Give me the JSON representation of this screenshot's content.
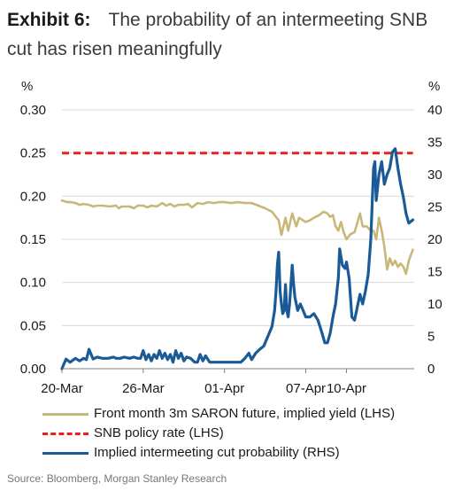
{
  "title": {
    "label": "Exhibit 6:",
    "text": "The probability of an intermeeting SNB cut has risen meaningfully"
  },
  "source": "Source: Bloomberg, Morgan Stanley Research",
  "colors": {
    "saron": "#c9b779",
    "policy": "#e8201f",
    "prob": "#1a5a96",
    "grid": "#d9d9d9"
  },
  "chart_data": {
    "type": "line",
    "left_axis": {
      "unit": "%",
      "min": 0,
      "max": 0.3,
      "ticks": [
        "0.00",
        "0.05",
        "0.10",
        "0.15",
        "0.20",
        "0.25",
        "0.30"
      ]
    },
    "right_axis": {
      "unit": "%",
      "min": 0,
      "max": 40,
      "ticks": [
        "0",
        "5",
        "10",
        "15",
        "20",
        "25",
        "30",
        "35",
        "40"
      ]
    },
    "x_axis": {
      "ticks": [
        "20-Mar",
        "26-Mar",
        "01-Apr",
        "07-Apr",
        "10-Apr"
      ],
      "tick_positions": [
        0,
        6,
        12,
        18,
        21
      ]
    },
    "grid": "horizontal",
    "legend_position": "bottom",
    "series": [
      {
        "name": "Front month 3m SARON future, implied yield (LHS)",
        "axis": "left",
        "color": "#c9b779",
        "points": [
          [
            0,
            0.195
          ],
          [
            0.4,
            0.193
          ],
          [
            0.7,
            0.193
          ],
          [
            1,
            0.192
          ],
          [
            1.3,
            0.19
          ],
          [
            1.6,
            0.191
          ],
          [
            2,
            0.19
          ],
          [
            2.3,
            0.188
          ],
          [
            2.6,
            0.189
          ],
          [
            3,
            0.189
          ],
          [
            3.5,
            0.188
          ],
          [
            4,
            0.189
          ],
          [
            4.2,
            0.186
          ],
          [
            4.4,
            0.188
          ],
          [
            5,
            0.188
          ],
          [
            5.3,
            0.186
          ],
          [
            5.6,
            0.189
          ],
          [
            6,
            0.189
          ],
          [
            6.3,
            0.187
          ],
          [
            6.6,
            0.189
          ],
          [
            7,
            0.188
          ],
          [
            7.4,
            0.192
          ],
          [
            7.7,
            0.189
          ],
          [
            8,
            0.191
          ],
          [
            8.3,
            0.188
          ],
          [
            8.6,
            0.19
          ],
          [
            9,
            0.19
          ],
          [
            9.3,
            0.191
          ],
          [
            9.6,
            0.187
          ],
          [
            10,
            0.192
          ],
          [
            10.4,
            0.191
          ],
          [
            10.8,
            0.193
          ],
          [
            11.2,
            0.192
          ],
          [
            11.6,
            0.193
          ],
          [
            12,
            0.193
          ],
          [
            12.5,
            0.192
          ],
          [
            13,
            0.193
          ],
          [
            13.5,
            0.192
          ],
          [
            14,
            0.192
          ],
          [
            14.5,
            0.189
          ],
          [
            15,
            0.186
          ],
          [
            15.5,
            0.182
          ],
          [
            16,
            0.172
          ],
          [
            16.2,
            0.155
          ],
          [
            16.5,
            0.175
          ],
          [
            16.7,
            0.16
          ],
          [
            17,
            0.18
          ],
          [
            17.3,
            0.165
          ],
          [
            17.5,
            0.175
          ],
          [
            17.8,
            0.172
          ],
          [
            18,
            0.17
          ],
          [
            18.3,
            0.172
          ],
          [
            18.6,
            0.175
          ],
          [
            19,
            0.178
          ],
          [
            19.3,
            0.182
          ],
          [
            19.6,
            0.18
          ],
          [
            19.8,
            0.176
          ],
          [
            20,
            0.178
          ],
          [
            20.2,
            0.165
          ],
          [
            20.4,
            0.16
          ],
          [
            20.6,
            0.17
          ],
          [
            20.8,
            0.158
          ],
          [
            21,
            0.15
          ],
          [
            21.3,
            0.156
          ],
          [
            21.6,
            0.158
          ],
          [
            22,
            0.18
          ],
          [
            22.2,
            0.165
          ],
          [
            22.5,
            0.165
          ],
          [
            22.8,
            0.16
          ],
          [
            23,
            0.16
          ],
          [
            23.2,
            0.15
          ],
          [
            23.4,
            0.175
          ],
          [
            23.6,
            0.16
          ],
          [
            23.8,
            0.142
          ],
          [
            24,
            0.115
          ],
          [
            24.2,
            0.128
          ],
          [
            24.4,
            0.12
          ],
          [
            24.6,
            0.125
          ],
          [
            24.8,
            0.118
          ],
          [
            25,
            0.122
          ],
          [
            25.2,
            0.118
          ],
          [
            25.4,
            0.11
          ],
          [
            25.6,
            0.125
          ],
          [
            25.9,
            0.138
          ]
        ]
      },
      {
        "name": "SNB policy rate (LHS)",
        "axis": "left",
        "color": "#e8201f",
        "style": "dashed",
        "points": [
          [
            0,
            0.25
          ],
          [
            25.9,
            0.25
          ]
        ]
      },
      {
        "name": "Implied intermeeting cut probability (RHS)",
        "axis": "right",
        "color": "#1a5a96",
        "points": [
          [
            0,
            0
          ],
          [
            0.3,
            1.5
          ],
          [
            0.6,
            1.0
          ],
          [
            1,
            1.6
          ],
          [
            1.3,
            1.2
          ],
          [
            1.6,
            1.6
          ],
          [
            1.8,
            1.4
          ],
          [
            2,
            3.0
          ],
          [
            2.3,
            1.5
          ],
          [
            2.6,
            1.8
          ],
          [
            3,
            1.6
          ],
          [
            3.4,
            1.6
          ],
          [
            3.8,
            1.8
          ],
          [
            4,
            1.6
          ],
          [
            4.3,
            1.6
          ],
          [
            4.6,
            1.8
          ],
          [
            5,
            1.6
          ],
          [
            5.3,
            1.8
          ],
          [
            5.6,
            1.6
          ],
          [
            5.8,
            1.6
          ],
          [
            6,
            2.8
          ],
          [
            6.2,
            1.4
          ],
          [
            6.4,
            2.2
          ],
          [
            6.6,
            1.2
          ],
          [
            6.8,
            2.2
          ],
          [
            7,
            1.6
          ],
          [
            7.2,
            2.8
          ],
          [
            7.4,
            1.6
          ],
          [
            7.6,
            2.4
          ],
          [
            7.8,
            1.4
          ],
          [
            8,
            2.2
          ],
          [
            8.2,
            1.0
          ],
          [
            8.4,
            2.8
          ],
          [
            8.6,
            1.6
          ],
          [
            8.8,
            2.4
          ],
          [
            9,
            1.2
          ],
          [
            9.2,
            1.8
          ],
          [
            9.5,
            1.6
          ],
          [
            9.8,
            1.0
          ],
          [
            10,
            1.0
          ],
          [
            10.2,
            2.2
          ],
          [
            10.4,
            1.2
          ],
          [
            10.6,
            2.0
          ],
          [
            10.9,
            1.0
          ],
          [
            11.2,
            1.0
          ],
          [
            11.6,
            1.0
          ],
          [
            12,
            1.0
          ],
          [
            12.4,
            1.0
          ],
          [
            12.8,
            1.0
          ],
          [
            13.2,
            1.0
          ],
          [
            13.5,
            1.6
          ],
          [
            13.8,
            2.4
          ],
          [
            14,
            1.4
          ],
          [
            14.3,
            2.4
          ],
          [
            14.6,
            3.0
          ],
          [
            14.9,
            3.5
          ],
          [
            15.2,
            5.0
          ],
          [
            15.5,
            6.5
          ],
          [
            15.7,
            9.0
          ],
          [
            15.8,
            12.0
          ],
          [
            15.9,
            16.0
          ],
          [
            16,
            18.0
          ],
          [
            16.1,
            12.0
          ],
          [
            16.2,
            10.0
          ],
          [
            16.3,
            8.5
          ],
          [
            16.4,
            9.0
          ],
          [
            16.5,
            13.0
          ],
          [
            16.6,
            9.0
          ],
          [
            16.7,
            8.0
          ],
          [
            16.8,
            10.0
          ],
          [
            16.9,
            13.0
          ],
          [
            17,
            16.0
          ],
          [
            17.1,
            13.0
          ],
          [
            17.2,
            11.0
          ],
          [
            17.4,
            9.0
          ],
          [
            17.6,
            10.0
          ],
          [
            17.8,
            9.0
          ],
          [
            18,
            8.0
          ],
          [
            18.3,
            8.0
          ],
          [
            18.6,
            8.5
          ],
          [
            18.9,
            7.5
          ],
          [
            19.2,
            5.5
          ],
          [
            19.4,
            4.0
          ],
          [
            19.6,
            4.0
          ],
          [
            19.8,
            5.5
          ],
          [
            20,
            8.0
          ],
          [
            20.2,
            10.0
          ],
          [
            20.4,
            14.0
          ],
          [
            20.5,
            18.5
          ],
          [
            20.7,
            16.0
          ],
          [
            20.9,
            15.5
          ],
          [
            21,
            16.5
          ],
          [
            21.2,
            14.0
          ],
          [
            21.4,
            8.0
          ],
          [
            21.6,
            7.5
          ],
          [
            21.8,
            9.5
          ],
          [
            22,
            11.5
          ],
          [
            22.2,
            10.0
          ],
          [
            22.4,
            12.0
          ],
          [
            22.6,
            14.5
          ],
          [
            22.8,
            20.0
          ],
          [
            23,
            31.0
          ],
          [
            23.1,
            32.0
          ],
          [
            23.2,
            26.0
          ],
          [
            23.4,
            30.0
          ],
          [
            23.6,
            32.0
          ],
          [
            23.8,
            28.5
          ],
          [
            24,
            30.0
          ],
          [
            24.2,
            31.0
          ],
          [
            24.4,
            33.5
          ],
          [
            24.6,
            34.0
          ],
          [
            24.8,
            31.0
          ],
          [
            25,
            28.5
          ],
          [
            25.2,
            26.5
          ],
          [
            25.4,
            24.0
          ],
          [
            25.6,
            22.5
          ],
          [
            25.9,
            23.0
          ]
        ]
      }
    ]
  }
}
